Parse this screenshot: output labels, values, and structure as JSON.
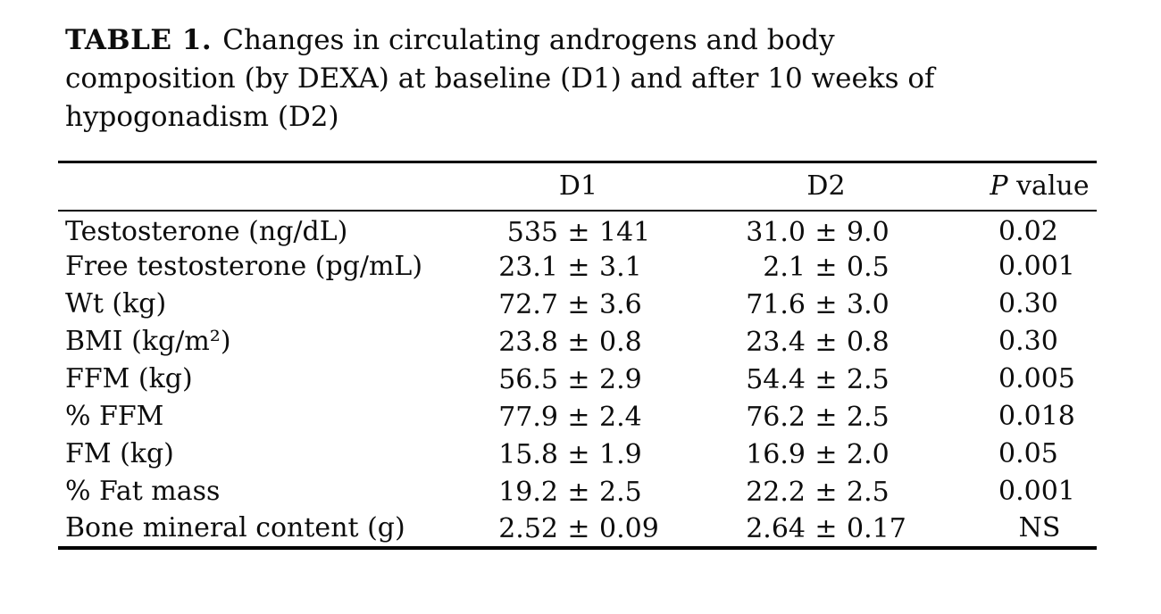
{
  "title": {
    "label": "TABLE 1.",
    "lines": [
      "Changes in circulating androgens and body",
      "composition (by DEXA) at baseline (D1) and after 10 weeks of",
      "hypogonadism (D2)"
    ]
  },
  "table": {
    "headers": {
      "param": "",
      "d1": "D1",
      "d2": "D2",
      "p_symbol": "P",
      "p_rest": "value"
    },
    "rows": [
      {
        "label": "Testosterone (ng/dL)",
        "d1": "535 ± 141",
        "d2": "31.0 ± 9.0",
        "p": "0.02"
      },
      {
        "label": "Free testosterone (pg/mL)",
        "d1": "23.1 ± 3.1",
        "d2": "2.1 ± 0.5",
        "p": "0.001"
      },
      {
        "label": "Wt (kg)",
        "d1": "72.7 ± 3.6",
        "d2": "71.6 ± 3.0",
        "p": "0.30"
      },
      {
        "label": "BMI (kg/m²)",
        "d1": "23.8 ± 0.8",
        "d2": "23.4 ± 0.8",
        "p": "0.30"
      },
      {
        "label": "FFM (kg)",
        "d1": "56.5 ± 2.9",
        "d2": "54.4 ± 2.5",
        "p": "0.005"
      },
      {
        "label": "% FFM",
        "d1": "77.9 ± 2.4",
        "d2": "76.2 ± 2.5",
        "p": "0.018"
      },
      {
        "label": "FM (kg)",
        "d1": "15.8 ± 1.9",
        "d2": "16.9 ± 2.0",
        "p": "0.05"
      },
      {
        "label": "% Fat mass",
        "d1": "19.2 ± 2.5",
        "d2": "22.2 ± 2.5",
        "p": "0.001"
      },
      {
        "label": "Bone mineral content (g)",
        "d1": "2.52 ± 0.09",
        "d2": "2.64 ± 0.17",
        "p": "NS"
      }
    ]
  }
}
